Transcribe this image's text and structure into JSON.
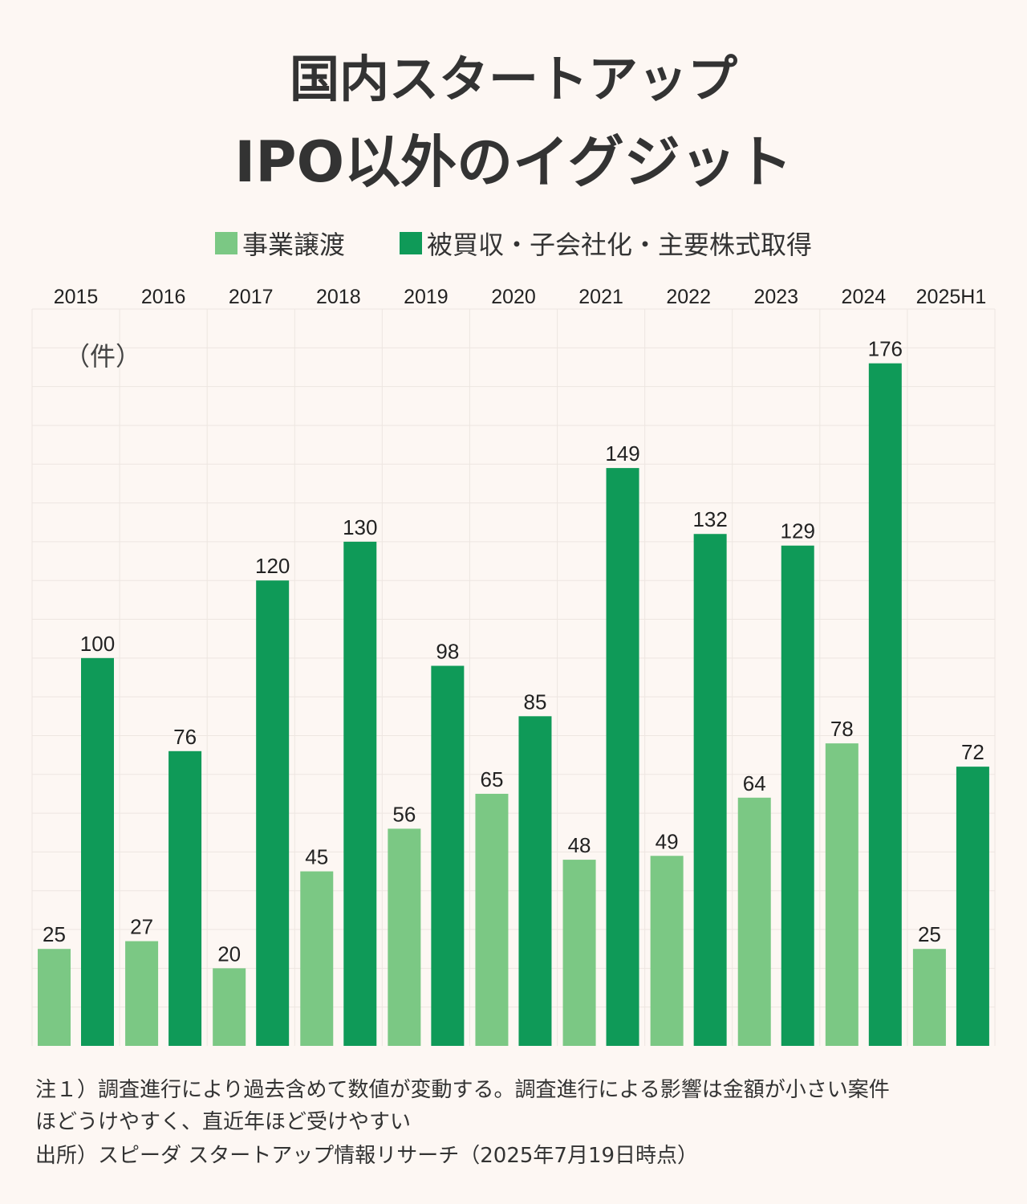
{
  "title_line1": "国内スタートアップ",
  "title_line2": "IPO以外のイグジット",
  "unit_label": "（件）",
  "notes": {
    "note_line1": "注１）調査進行により過去含めて数値が変動する。調査進行による影響は金額が小さい案件",
    "note_line2": "ほどうけやすく、直近年ほど受けやすい",
    "source": "出所）スピーダ スタートアップ情報リサーチ（2025年7月19日時点）"
  },
  "colors": {
    "light_green": "#7bc884",
    "dark_green": "#0f9a58",
    "background": "#fdf7f3",
    "grid": "#ede6e1"
  },
  "chart_data": {
    "type": "bar",
    "categories": [
      "2015",
      "2016",
      "2017",
      "2018",
      "2019",
      "2020",
      "2021",
      "2022",
      "2023",
      "2024",
      "2025H1"
    ],
    "series": [
      {
        "name": "事業譲渡",
        "color": "#7bc884",
        "values": [
          25,
          27,
          20,
          45,
          56,
          65,
          48,
          49,
          64,
          78,
          25
        ]
      },
      {
        "name": "被買収・子会社化・主要株式取得",
        "color": "#0f9a58",
        "values": [
          100,
          76,
          120,
          130,
          98,
          85,
          149,
          132,
          129,
          176,
          72
        ]
      }
    ],
    "ylim": [
      0,
      190
    ],
    "category_labels_position": "top",
    "data_labels": true,
    "legend_position": "top"
  }
}
